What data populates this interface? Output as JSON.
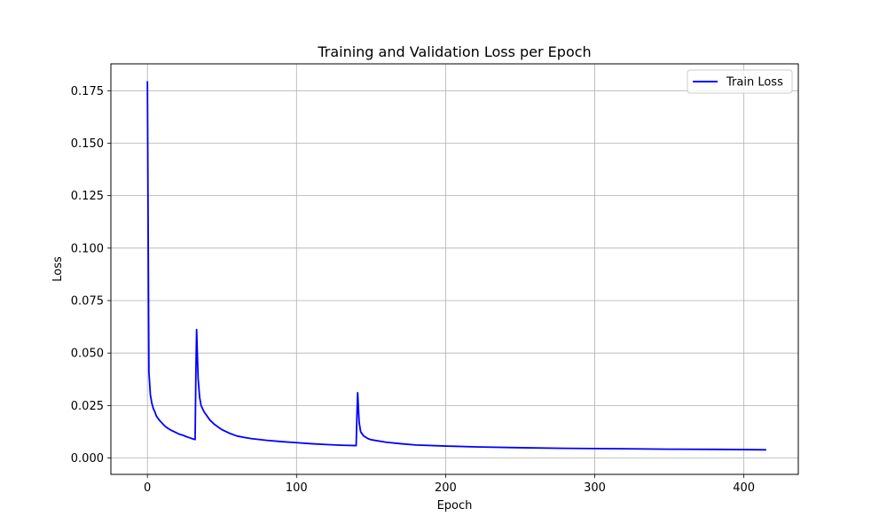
{
  "chart_data": {
    "type": "line",
    "title": "Training and Validation Loss per Epoch",
    "xlabel": "Epoch",
    "ylabel": "Loss",
    "xlim": [
      -24.5,
      436.5
    ],
    "ylim": [
      -0.0078,
      0.1878
    ],
    "xticks": [
      0,
      100,
      200,
      300,
      400
    ],
    "yticks": [
      0.0,
      0.025,
      0.05,
      0.075,
      0.1,
      0.125,
      0.15,
      0.175
    ],
    "ytick_labels": [
      "0.000",
      "0.025",
      "0.050",
      "0.075",
      "0.100",
      "0.125",
      "0.150",
      "0.175"
    ],
    "grid": true,
    "legend_position": "upper right",
    "series": [
      {
        "name": "Train Loss",
        "color": "#0000ff",
        "points": [
          [
            0,
            0.1795
          ],
          [
            1,
            0.041
          ],
          [
            2,
            0.03
          ],
          [
            3,
            0.026
          ],
          [
            4,
            0.0235
          ],
          [
            5,
            0.022
          ],
          [
            6,
            0.02
          ],
          [
            8,
            0.018
          ],
          [
            10,
            0.0165
          ],
          [
            12,
            0.015
          ],
          [
            14,
            0.014
          ],
          [
            16,
            0.0132
          ],
          [
            18,
            0.0125
          ],
          [
            20,
            0.0118
          ],
          [
            22,
            0.0112
          ],
          [
            24,
            0.0108
          ],
          [
            26,
            0.0102
          ],
          [
            28,
            0.0097
          ],
          [
            30,
            0.0092
          ],
          [
            32,
            0.0088
          ],
          [
            32.5,
            0.04
          ],
          [
            33,
            0.0612
          ],
          [
            34,
            0.038
          ],
          [
            35,
            0.029
          ],
          [
            36,
            0.025
          ],
          [
            38,
            0.022
          ],
          [
            40,
            0.02
          ],
          [
            42,
            0.018
          ],
          [
            45,
            0.016
          ],
          [
            48,
            0.0145
          ],
          [
            50,
            0.0135
          ],
          [
            55,
            0.0118
          ],
          [
            60,
            0.0105
          ],
          [
            65,
            0.0098
          ],
          [
            70,
            0.0092
          ],
          [
            80,
            0.0084
          ],
          [
            90,
            0.0078
          ],
          [
            100,
            0.0073
          ],
          [
            110,
            0.0068
          ],
          [
            120,
            0.0064
          ],
          [
            130,
            0.0061
          ],
          [
            140,
            0.0059
          ],
          [
            140.5,
            0.02
          ],
          [
            141,
            0.0311
          ],
          [
            142,
            0.017
          ],
          [
            143,
            0.0125
          ],
          [
            145,
            0.0105
          ],
          [
            148,
            0.0092
          ],
          [
            150,
            0.0087
          ],
          [
            160,
            0.0075
          ],
          [
            170,
            0.0068
          ],
          [
            180,
            0.0062
          ],
          [
            200,
            0.0057
          ],
          [
            220,
            0.0053
          ],
          [
            250,
            0.0049
          ],
          [
            280,
            0.0046
          ],
          [
            300,
            0.0045
          ],
          [
            320,
            0.0044
          ],
          [
            350,
            0.0042
          ],
          [
            380,
            0.0041
          ],
          [
            400,
            0.004
          ],
          [
            415,
            0.0039
          ]
        ]
      }
    ]
  }
}
